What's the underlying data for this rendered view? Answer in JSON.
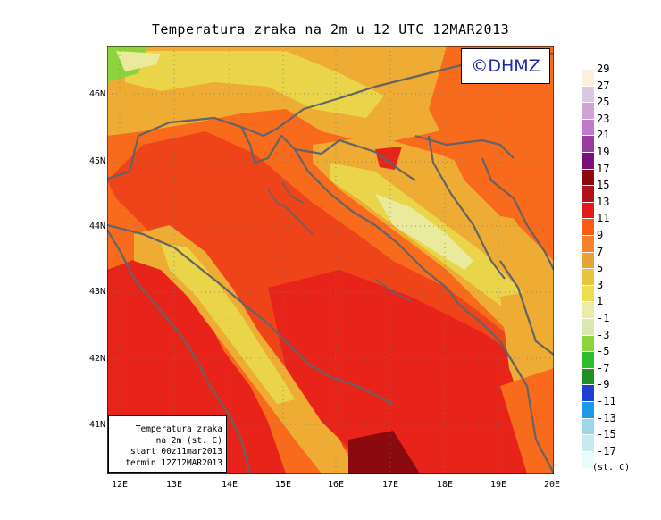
{
  "title": "Temperatura zraka na 2m u 12 UTC 12MAR2013",
  "logo": "©DHMZ",
  "info_box": {
    "line1": "Temperatura zraka",
    "line2": "na 2m (st. C)",
    "line3": "start 00z11mar2013",
    "line4": "termin 12Z12MAR2013"
  },
  "lat_labels": [
    "46N",
    "45N",
    "44N",
    "43N",
    "42N",
    "41N"
  ],
  "lon_labels": [
    "12E",
    "13E",
    "14E",
    "15E",
    "16E",
    "17E",
    "18E",
    "19E",
    "20E"
  ],
  "legend": {
    "values": [
      "29",
      "27",
      "25",
      "23",
      "21",
      "19",
      "17",
      "15",
      "13",
      "11",
      "9",
      "7",
      "5",
      "3",
      "1",
      "-1",
      "-3",
      "-5",
      "-7",
      "-9",
      "-11",
      "-13",
      "-15",
      "-17"
    ],
    "units": "(st. C)",
    "colors": [
      "#fdeede",
      "#d9c8df",
      "#cfa3d6",
      "#c07bcd",
      "#9c3aa4",
      "#7a0e7a",
      "#8a0a10",
      "#b0101a",
      "#e31a1c",
      "#f85c18",
      "#f7802a",
      "#eaa136",
      "#e8c53c",
      "#ecdf50",
      "#eceba8",
      "#dbe9b0",
      "#8cd33c",
      "#2ebd2c",
      "#1f8f26",
      "#1e3fd2",
      "#1a9bea",
      "#9fd7e8",
      "#c7eaf0",
      "#eafbfb"
    ]
  },
  "colors": {
    "sea_warm": "#e8231a",
    "land_warm": "#f86a1c",
    "land_mild": "#eeac34",
    "land_cool": "#ead44a",
    "land_cold": "#e9ea9c",
    "coast": "#646464",
    "logo_text": "#1c2aa8"
  }
}
